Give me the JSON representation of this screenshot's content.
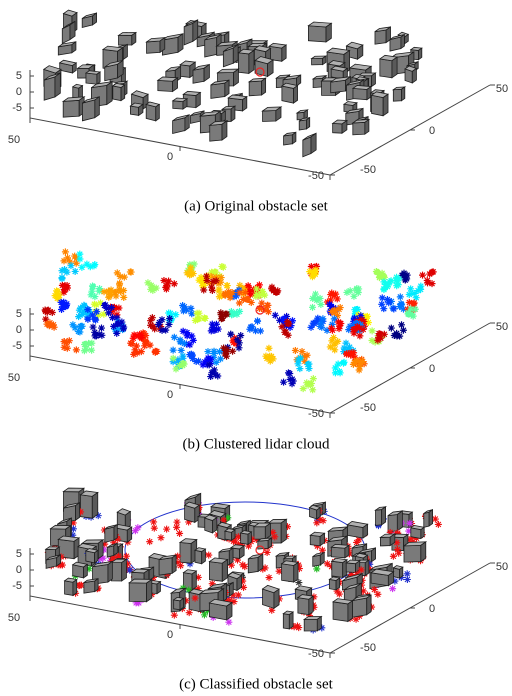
{
  "figures": [
    {
      "caption": "(a) Original obstacle set",
      "zticks": [
        5,
        0,
        -5
      ],
      "xticks": [
        50,
        0,
        -50
      ],
      "yticks": [
        50,
        0,
        -50
      ]
    },
    {
      "caption": "(b) Clustered lidar cloud",
      "zticks": [
        5,
        0,
        -5
      ],
      "xticks": [
        50,
        0,
        -50
      ],
      "yticks": [
        50,
        0,
        -50
      ]
    },
    {
      "caption": "(c) Classified obstacle set",
      "zticks": [
        5,
        0,
        -5
      ],
      "xticks": [
        50,
        0,
        -50
      ],
      "yticks": [
        50,
        0,
        -50
      ]
    }
  ]
}
